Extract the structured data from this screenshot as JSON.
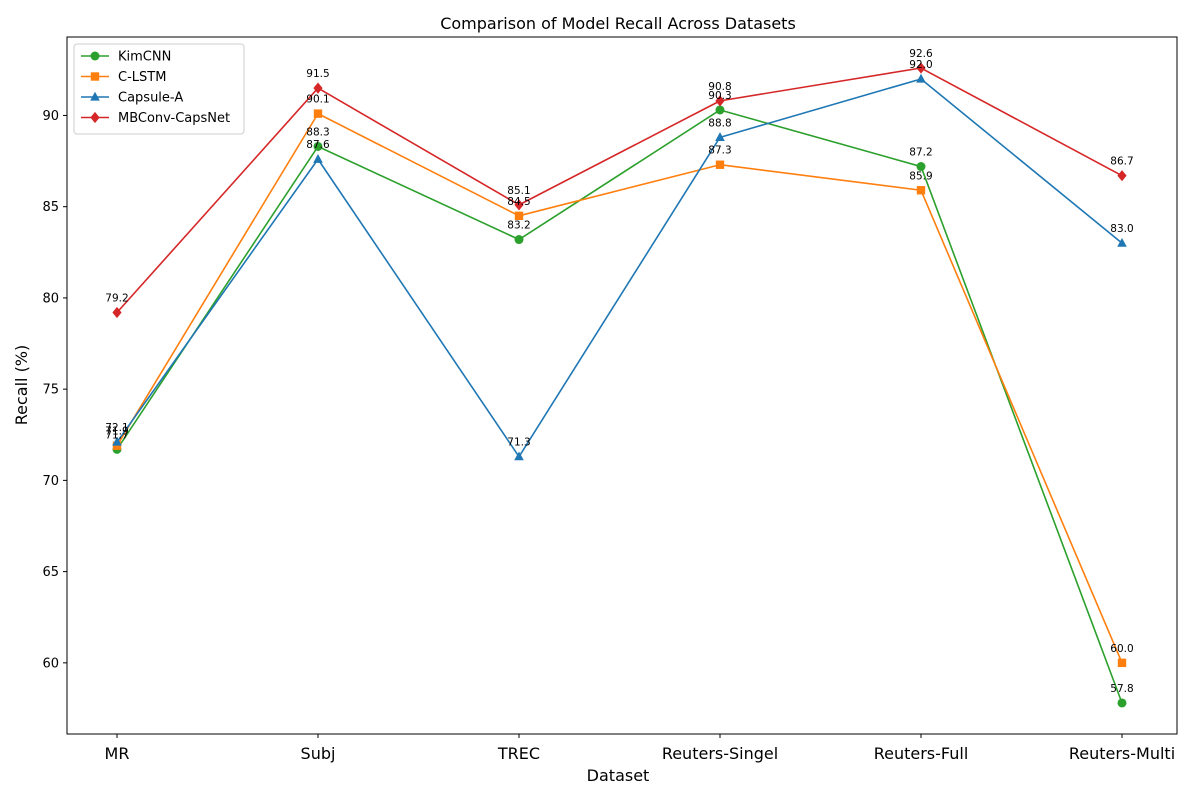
{
  "chart_data": {
    "type": "line",
    "title": "Comparison of Model Recall Across Datasets",
    "xlabel": "Dataset",
    "ylabel": "Recall (%)",
    "categories": [
      "MR",
      "Subj",
      "TREC",
      "Reuters-Singel",
      "Reuters-Full",
      "Reuters-Multi"
    ],
    "ylim": [
      56.1,
      94.3
    ],
    "yticks": [
      60,
      65,
      70,
      75,
      80,
      85,
      90
    ],
    "grid": false,
    "legend_position": "top-left",
    "series": [
      {
        "name": "KimCNN",
        "color": "#2ca02c",
        "marker": "circle",
        "values": [
          71.7,
          88.3,
          83.2,
          90.3,
          87.2,
          57.8
        ]
      },
      {
        "name": "C-LSTM",
        "color": "#ff7f0e",
        "marker": "square",
        "values": [
          71.9,
          90.1,
          84.5,
          87.3,
          85.9,
          60.0
        ]
      },
      {
        "name": "Capsule-A",
        "color": "#1f77b4",
        "marker": "triangle",
        "values": [
          72.1,
          87.6,
          71.3,
          88.8,
          92.0,
          83.0
        ]
      },
      {
        "name": "MBConv-CapsNet",
        "color": "#d62728",
        "marker": "diamond",
        "values": [
          79.2,
          91.5,
          85.1,
          90.8,
          92.6,
          86.7
        ]
      }
    ]
  }
}
